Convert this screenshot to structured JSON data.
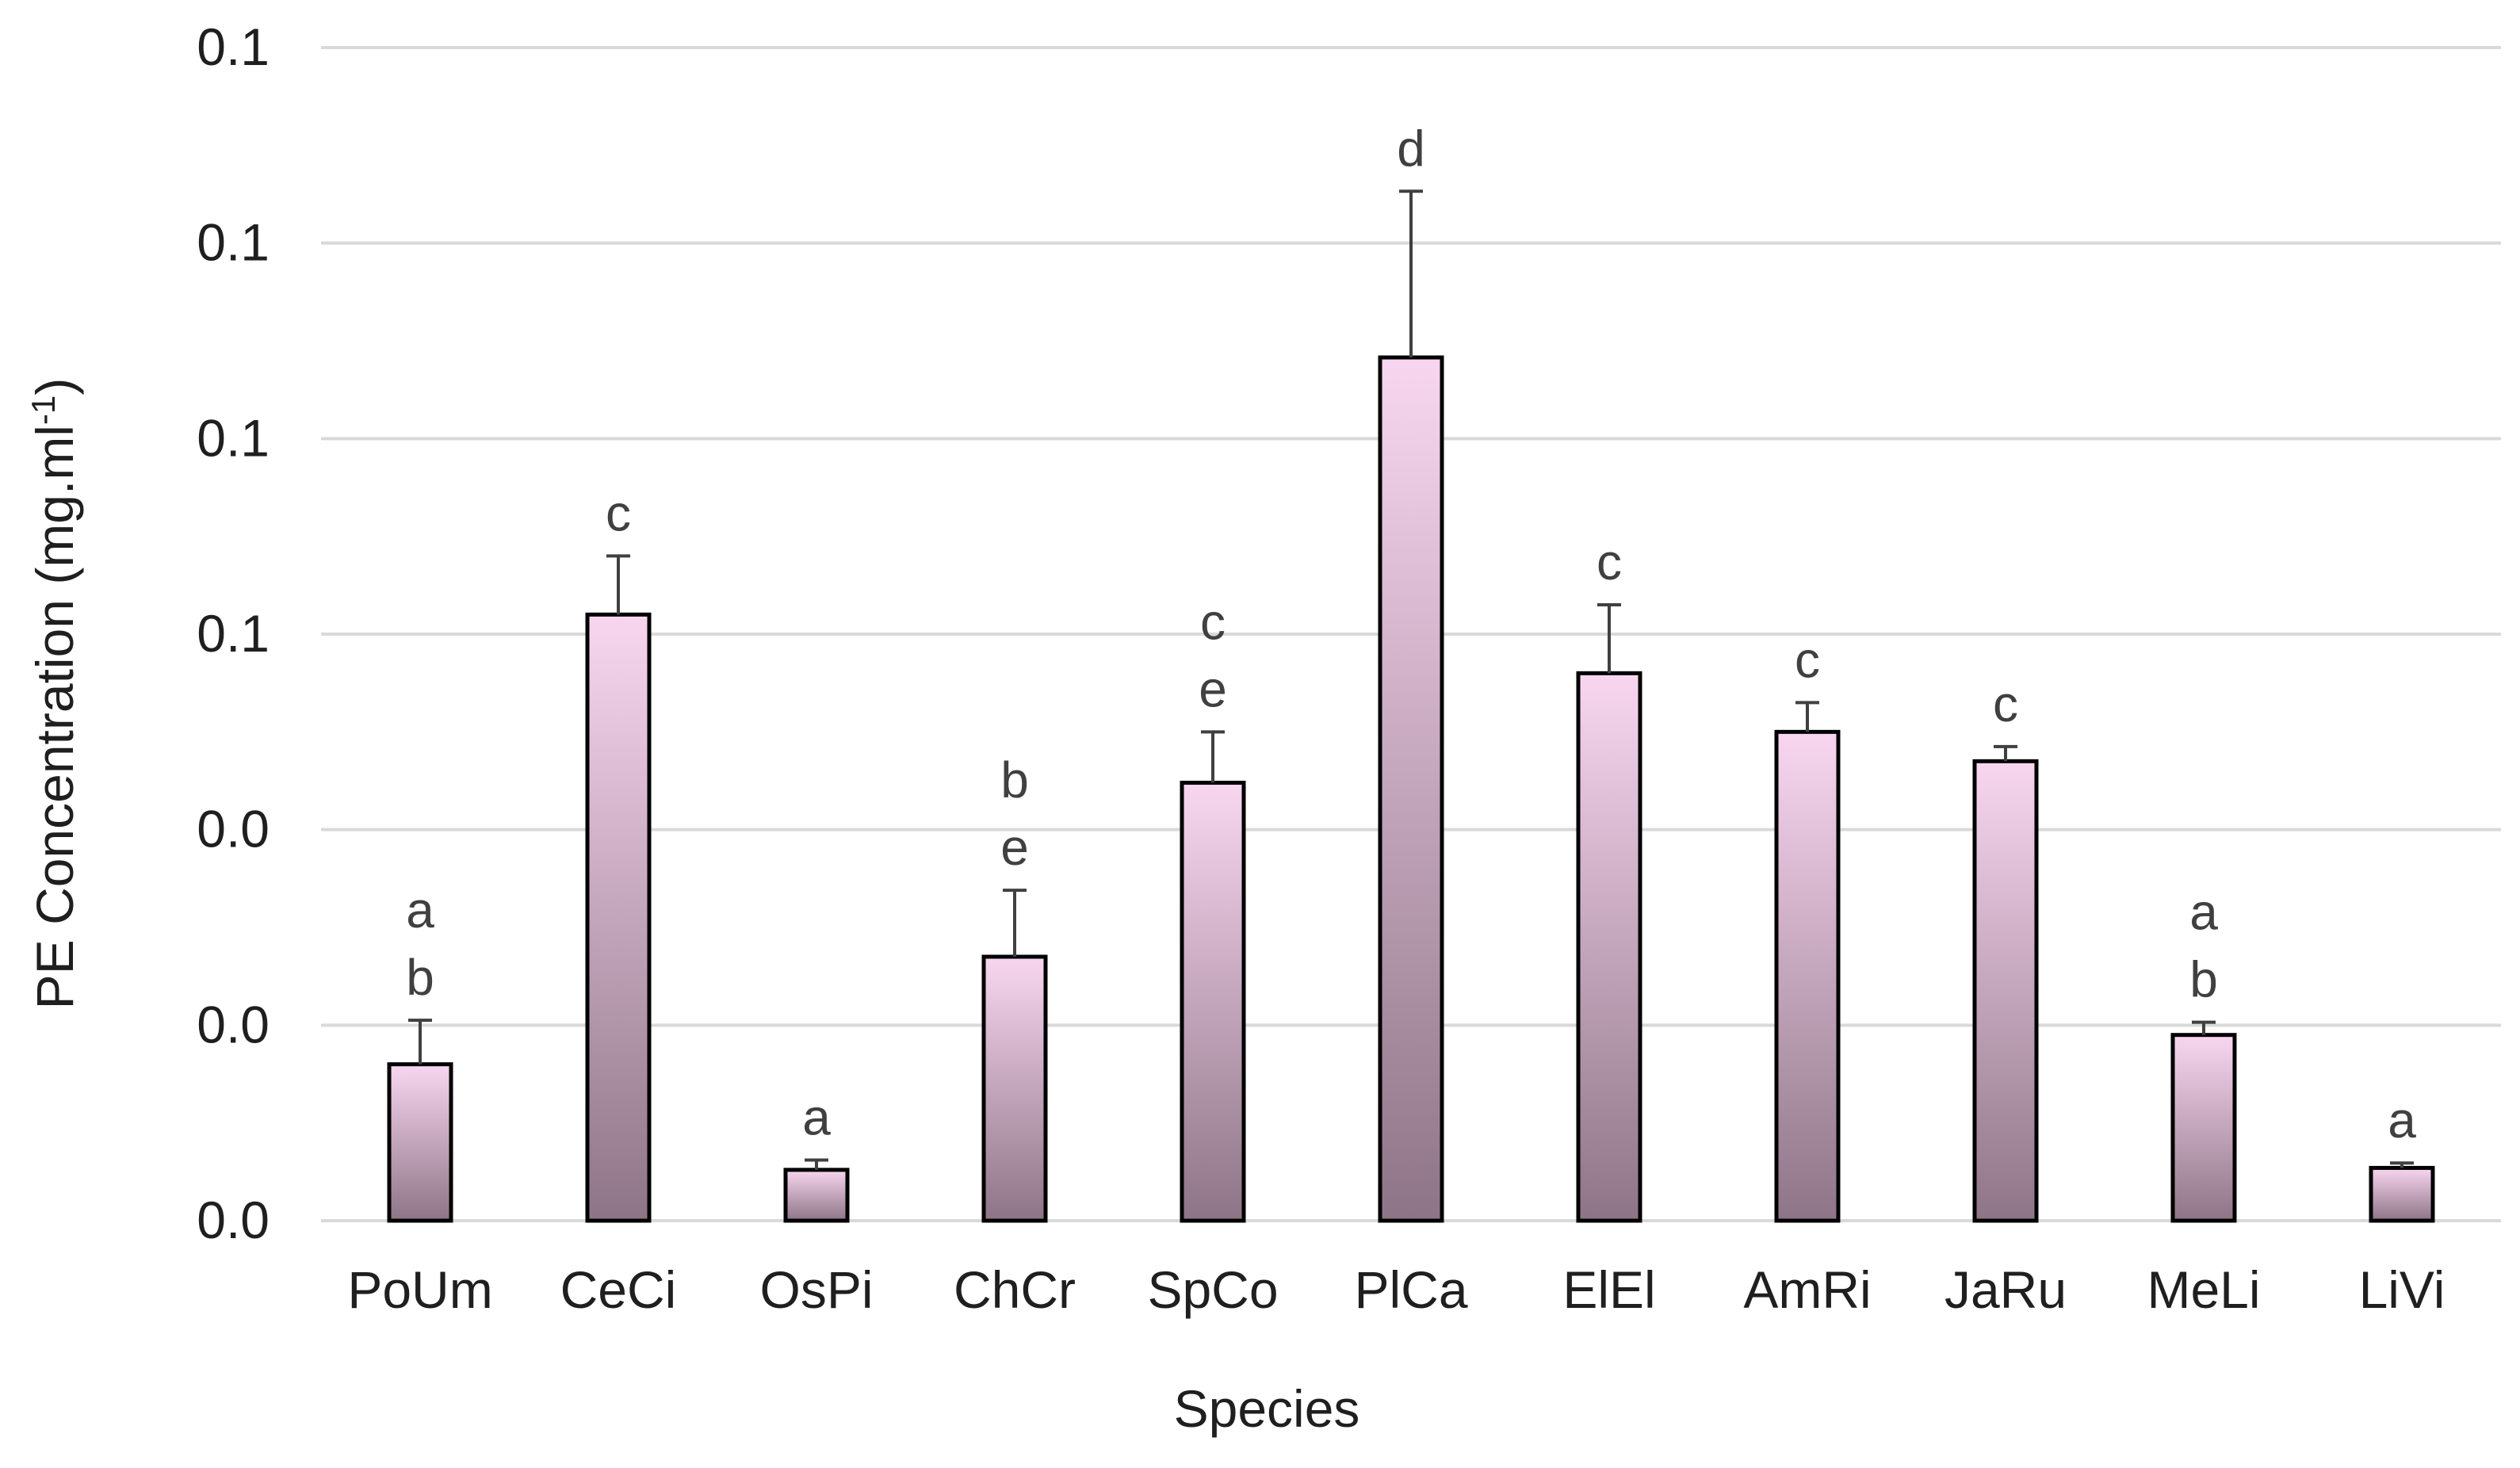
{
  "chart_data": {
    "type": "bar",
    "title": "",
    "xlabel": "Species",
    "ylabel": "PE Concentration (mg.ml",
    "ylabel_superscript": "-1",
    "ylabel_suffix": ")",
    "ylim": [
      0,
      0.12
    ],
    "grid": true,
    "yticks": [
      {
        "value": 0.0,
        "label": "0.0"
      },
      {
        "value": 0.02,
        "label": "0.0"
      },
      {
        "value": 0.04,
        "label": "0.0"
      },
      {
        "value": 0.06,
        "label": "0.1"
      },
      {
        "value": 0.08,
        "label": "0.1"
      },
      {
        "value": 0.1,
        "label": "0.1"
      },
      {
        "value": 0.12,
        "label": "0.1"
      }
    ],
    "categories": [
      "PoUm",
      "CeCi",
      "OsPi",
      "ChCr",
      "SpCo",
      "PlCa",
      "ElEl",
      "AmRi",
      "JaRu",
      "MeLi",
      "LiVi"
    ],
    "values": [
      0.016,
      0.062,
      0.0052,
      0.027,
      0.0448,
      0.0883,
      0.056,
      0.05,
      0.047,
      0.019,
      0.0054
    ],
    "errors": [
      0.0045,
      0.006,
      0.001,
      0.0068,
      0.0052,
      0.017,
      0.007,
      0.003,
      0.0015,
      0.0013,
      0.0005
    ],
    "significance": [
      "ab",
      "c",
      "a",
      "be",
      "ce",
      "d",
      "c",
      "c",
      "c",
      "ab",
      "a"
    ],
    "colors": {
      "bar_top": "#f8d6f0",
      "bar_bottom": "#8e7586",
      "bar_stroke": "#000000",
      "grid": "#d9d9d9",
      "error_bar": "#404040"
    }
  }
}
